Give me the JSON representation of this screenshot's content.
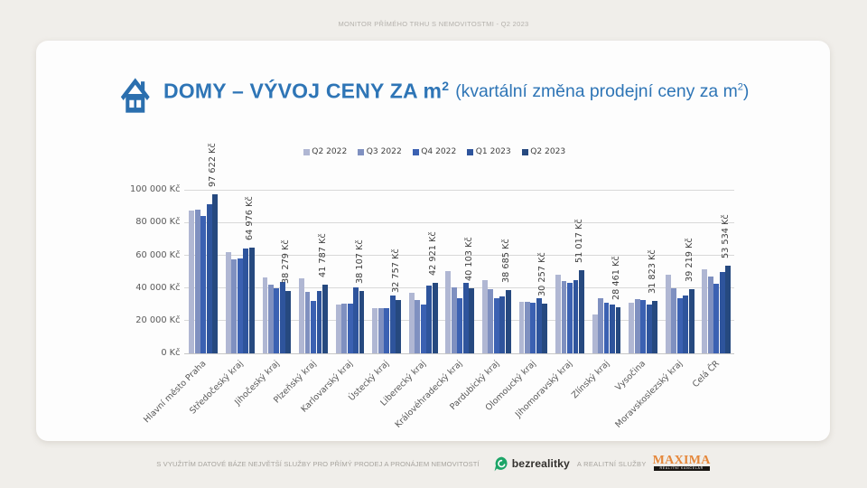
{
  "page": {
    "header": "MONITOR PŘÍMÉHO TRHU S NEMOVITOSTMI - Q2 2023"
  },
  "title": {
    "icon": "house-icon",
    "main_prefix": "DOMY – VÝVOJ CENY ZA m",
    "main_sup": "2",
    "sub_prefix": "(kvartální změna prodejní ceny za m",
    "sub_sup": "2",
    "sub_suffix": ")",
    "color": "#2e75b6"
  },
  "chart_data": {
    "type": "bar",
    "title": "DOMY – VÝVOJ CENY ZA m² (kvartální změna prodejní ceny za m²)",
    "categories": [
      "Hlavní město Praha",
      "Středočeský kraj",
      "Jihočeský kraj",
      "Plzeňský kraj",
      "Karlovarský kraj",
      "Ústecký kraj",
      "Liberecký kraj",
      "Královéhradecký kraj",
      "Pardubický kraj",
      "Olomoucký kraj",
      "Jihomoravský kraj",
      "Zlínský kraj",
      "Vysočina",
      "Moravskoslezský kraj",
      "Celá ČR"
    ],
    "series": [
      {
        "name": "Q2 2022",
        "color": "#b0b7d3",
        "values": [
          87300,
          62000,
          46400,
          45900,
          30000,
          27500,
          37100,
          50200,
          44800,
          31400,
          47900,
          23600,
          30800,
          48000,
          51600
        ]
      },
      {
        "name": "Q3 2022",
        "color": "#7f90c0",
        "values": [
          87900,
          57500,
          42000,
          37700,
          30400,
          27500,
          32500,
          40200,
          39300,
          31300,
          44000,
          33800,
          33200,
          39600,
          47000
        ]
      },
      {
        "name": "Q4 2022",
        "color": "#3b61b2",
        "values": [
          84300,
          58300,
          39700,
          32300,
          30400,
          27500,
          29800,
          33600,
          34000,
          31200,
          42900,
          31100,
          32600,
          33900,
          42800
        ]
      },
      {
        "name": "Q1 2023",
        "color": "#2e549c",
        "values": [
          91100,
          64100,
          43700,
          38100,
          40500,
          35300,
          41500,
          43000,
          34900,
          33900,
          44700,
          29700,
          30100,
          35300,
          49600
        ]
      },
      {
        "name": "Q2 2023",
        "color": "#26497f",
        "values": [
          97622,
          64976,
          38279,
          41787,
          38107,
          32757,
          42921,
          40103,
          38685,
          30257,
          51017,
          28461,
          31823,
          39219,
          53534
        ]
      }
    ],
    "value_labels": [
      "97 622 Kč",
      "64 976 Kč",
      "38 279 Kč",
      "41 787 Kč",
      "38 107 Kč",
      "32 757 Kč",
      "42 921 Kč",
      "40 103 Kč",
      "38 685 Kč",
      "30 257 Kč",
      "51 017 Kč",
      "28 461 Kč",
      "31 823 Kč",
      "39 219 Kč",
      "53 534 Kč"
    ],
    "value_labels_series": "Q2 2023",
    "y_ticks": {
      "values": [
        0,
        20000,
        40000,
        60000,
        80000,
        100000
      ],
      "labels": [
        "0 Kč",
        "20 000 Kč",
        "40 000 Kč",
        "60 000 Kč",
        "80 000 Kč",
        "100 000 Kč"
      ]
    },
    "xlabel": "",
    "ylabel": "",
    "ylim": [
      0,
      100000
    ],
    "grid": true,
    "legend_position": "top"
  },
  "footer": {
    "tagline": "S VYUŽITÍM DATOVÉ BÁZE NEJVĚTŠÍ SLUŽBY PRO PŘÍMÝ PRODEJ A PRONÁJEM NEMOVITOSTÍ",
    "bezrealitky_label": "bezrealitky",
    "bezrealitky_green": "#1ca567",
    "services_label": "A REALITNÍ SLUŽBY",
    "maxima_label": "MAXIMA",
    "maxima_sub_label": "REALITNÍ KANCELÁŘ",
    "maxima_orange": "#e5873a"
  }
}
